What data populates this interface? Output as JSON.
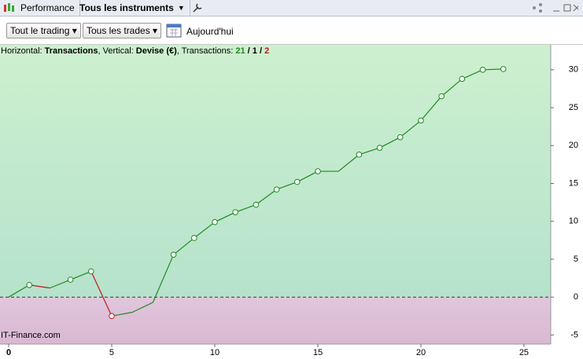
{
  "window": {
    "tab": "Performance",
    "instrument": "Tous les instruments"
  },
  "toolbar": {
    "scope": "Tout le trading",
    "trades": "Tous les trades",
    "period": "Aujourd'hui"
  },
  "info": {
    "prefix": "Horizontal: ",
    "x_unit": "Transactions",
    "mid": ", Vertical: ",
    "y_unit": "Devise (€)",
    "count_label": ", Transactions: ",
    "wins": "21",
    "sep1": " / ",
    "even": "1",
    "sep2": " / ",
    "losses": "2"
  },
  "watermark": "IT-Finance.com",
  "chart_data": {
    "type": "line",
    "x": [
      0,
      1,
      2,
      3,
      4,
      5,
      6,
      7,
      8,
      9,
      10,
      11,
      12,
      13,
      14,
      15,
      16,
      17,
      18,
      19,
      20,
      21,
      22,
      23,
      24
    ],
    "values": [
      0,
      1.6,
      1.2,
      2.3,
      3.4,
      -2.5,
      -2.0,
      -0.7,
      5.6,
      7.8,
      9.9,
      11.2,
      12.2,
      14.2,
      15.2,
      16.6,
      16.6,
      18.8,
      19.7,
      21.1,
      23.3,
      26.5,
      28.8,
      30.0,
      30.1
    ],
    "markers": [
      false,
      true,
      false,
      true,
      true,
      true,
      false,
      false,
      true,
      true,
      true,
      true,
      true,
      true,
      true,
      true,
      false,
      true,
      true,
      true,
      true,
      true,
      true,
      true,
      true
    ],
    "up_color": "#1f8a1f",
    "down_color": "#c0181c",
    "xlim": [
      -0.42,
      26.3
    ],
    "ylim": [
      -6.2,
      33.3
    ],
    "xticks": [
      0,
      5,
      10,
      15,
      20,
      25
    ],
    "yticks": [
      -5,
      0,
      5,
      10,
      15,
      20,
      25,
      30
    ]
  }
}
